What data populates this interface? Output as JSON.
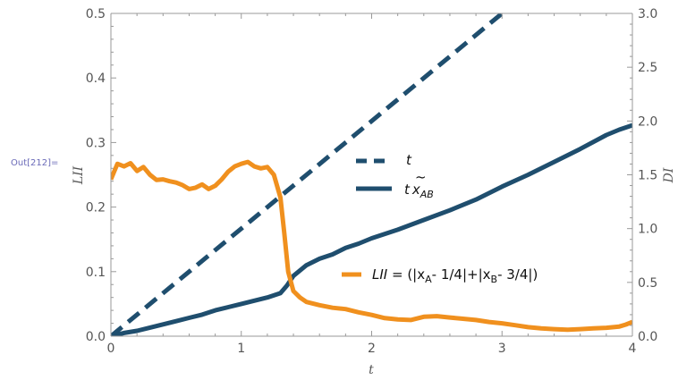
{
  "prompt_label": "Out[212]=",
  "chart_data": {
    "type": "line",
    "xlabel": "t",
    "ylabel_left": "LII",
    "ylabel_right": "DI",
    "xlim": [
      0,
      4
    ],
    "ylim_left": [
      0,
      0.5
    ],
    "ylim_right": [
      0,
      3.0
    ],
    "x_ticks": [
      "0",
      "1",
      "2",
      "3",
      "4"
    ],
    "y_left_ticks": [
      "0.0",
      "0.1",
      "0.2",
      "0.3",
      "0.4",
      "0.5"
    ],
    "y_right_ticks": [
      "0.0",
      "0.5",
      "1.0",
      "1.5",
      "2.0",
      "2.5",
      "3.0"
    ],
    "grid": false,
    "colors": {
      "blue": "#1f4e6e",
      "orange": "#f0901e"
    },
    "series": [
      {
        "name": "t",
        "axis": "right",
        "style": "dashed",
        "color": "#1f4e6e",
        "x": [
          0,
          3.0
        ],
        "y": [
          0,
          3.0
        ]
      },
      {
        "axis": "right",
        "style": "solid",
        "color": "#1f4e6e",
        "x": [
          0,
          0.1,
          0.2,
          0.3,
          0.4,
          0.5,
          0.6,
          0.7,
          0.8,
          0.9,
          1.0,
          1.1,
          1.2,
          1.3,
          1.35,
          1.4,
          1.5,
          1.6,
          1.7,
          1.8,
          1.9,
          2.0,
          2.2,
          2.4,
          2.6,
          2.8,
          3.0,
          3.2,
          3.4,
          3.6,
          3.8,
          3.9,
          4.0
        ],
        "y": [
          0.0,
          0.03,
          0.05,
          0.08,
          0.11,
          0.14,
          0.17,
          0.2,
          0.24,
          0.27,
          0.3,
          0.33,
          0.36,
          0.4,
          0.47,
          0.56,
          0.66,
          0.72,
          0.76,
          0.82,
          0.86,
          0.91,
          0.99,
          1.08,
          1.17,
          1.27,
          1.39,
          1.5,
          1.62,
          1.74,
          1.87,
          1.92,
          1.96
        ]
      },
      {
        "axis": "left",
        "style": "solid",
        "color": "#f0901e",
        "x": [
          0,
          0.05,
          0.1,
          0.15,
          0.2,
          0.25,
          0.3,
          0.35,
          0.4,
          0.45,
          0.5,
          0.55,
          0.6,
          0.65,
          0.7,
          0.75,
          0.8,
          0.85,
          0.9,
          0.95,
          1.0,
          1.05,
          1.1,
          1.15,
          1.2,
          1.25,
          1.3,
          1.33,
          1.36,
          1.4,
          1.45,
          1.5,
          1.6,
          1.7,
          1.8,
          1.9,
          2.0,
          2.1,
          2.2,
          2.3,
          2.4,
          2.5,
          2.6,
          2.7,
          2.8,
          2.9,
          3.0,
          3.1,
          3.2,
          3.3,
          3.4,
          3.5,
          3.6,
          3.7,
          3.8,
          3.9,
          3.95,
          4.0
        ],
        "y": [
          0.243,
          0.267,
          0.263,
          0.268,
          0.256,
          0.262,
          0.25,
          0.242,
          0.243,
          0.24,
          0.238,
          0.234,
          0.228,
          0.23,
          0.235,
          0.228,
          0.233,
          0.243,
          0.255,
          0.263,
          0.267,
          0.27,
          0.263,
          0.26,
          0.262,
          0.25,
          0.215,
          0.16,
          0.1,
          0.07,
          0.06,
          0.053,
          0.048,
          0.044,
          0.042,
          0.037,
          0.033,
          0.028,
          0.026,
          0.025,
          0.03,
          0.031,
          0.029,
          0.027,
          0.025,
          0.022,
          0.02,
          0.017,
          0.014,
          0.012,
          0.011,
          0.01,
          0.011,
          0.012,
          0.013,
          0.015,
          0.018,
          0.022
        ]
      }
    ],
    "legend": {
      "t_label": "t",
      "tx_prefix": "t",
      "tx_tilde": "~",
      "tx_var": "x",
      "tx_sub": "AB",
      "lii_name": "LII",
      "lii_eq": " =  (|x",
      "lii_sub_a": "A",
      "lii_mid": "- 1/4|+|x",
      "lii_sub_b": "B",
      "lii_end": "- 3/4|)"
    }
  }
}
